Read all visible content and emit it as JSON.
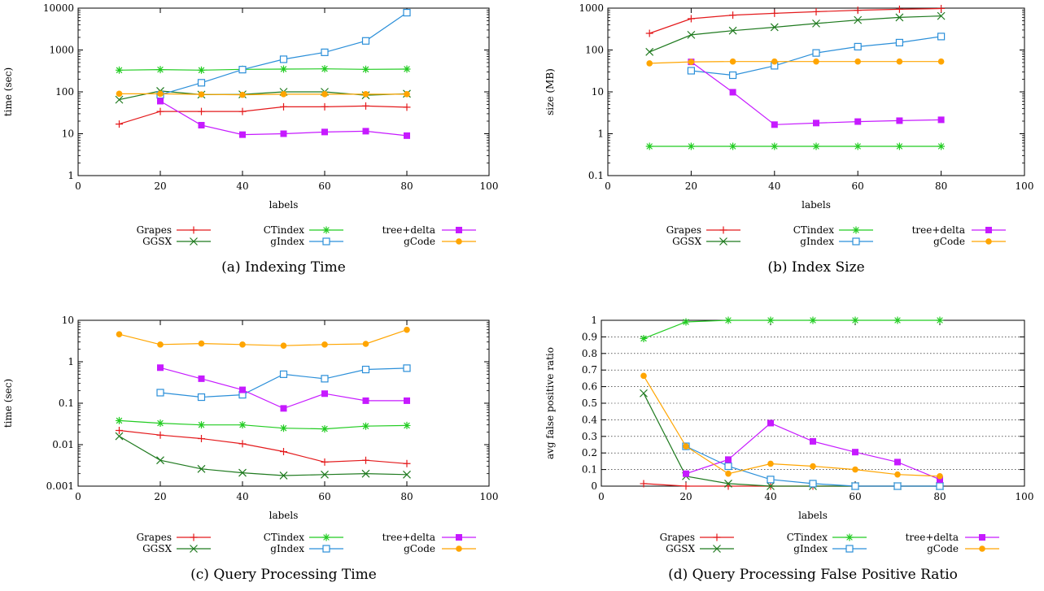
{
  "legend": {
    "series": [
      {
        "label": "Grapes",
        "color": "#e41a1c",
        "marker": "plus"
      },
      {
        "label": "GGSX",
        "color": "#1f7a1f",
        "marker": "cross"
      },
      {
        "label": "CTindex",
        "color": "#22cc22",
        "marker": "star"
      },
      {
        "label": "gIndex",
        "color": "#2b8fd9",
        "marker": "square-open"
      },
      {
        "label": "tree+delta",
        "color": "#c61aff",
        "marker": "square-filled"
      },
      {
        "label": "gCode",
        "color": "#ffa500",
        "marker": "circle-filled"
      }
    ]
  },
  "chart_data": [
    {
      "type": "line",
      "caption": "(a) Indexing Time",
      "xlabel": "labels",
      "ylabel": "time (sec)",
      "xlim": [
        0,
        100
      ],
      "xticks": [
        "0",
        "20",
        "40",
        "60",
        "80",
        "100"
      ],
      "ylim": [
        1,
        10000
      ],
      "yscale": "log",
      "yticks": [
        "1",
        "10",
        "100",
        "1000",
        "10000"
      ],
      "grid": false,
      "legend_position": "bottom",
      "series": [
        {
          "name": "Grapes",
          "x": [
            10,
            20,
            30,
            40,
            50,
            60,
            70,
            80
          ],
          "values": [
            17,
            34,
            34,
            34,
            44,
            44,
            46,
            43
          ]
        },
        {
          "name": "GGSX",
          "x": [
            10,
            20,
            30,
            40,
            50,
            60,
            70,
            80
          ],
          "values": [
            65,
            105,
            86,
            87,
            100,
            100,
            83,
            90
          ]
        },
        {
          "name": "CTindex",
          "x": [
            10,
            20,
            30,
            40,
            50,
            60,
            70,
            80
          ],
          "values": [
            330,
            340,
            330,
            345,
            350,
            355,
            345,
            350
          ]
        },
        {
          "name": "gIndex",
          "x": [
            20,
            30,
            40,
            50,
            60,
            70,
            80
          ],
          "values": [
            85,
            165,
            340,
            600,
            880,
            1650,
            7800
          ]
        },
        {
          "name": "tree+delta",
          "x": [
            20,
            30,
            40,
            50,
            60,
            70,
            80
          ],
          "values": [
            60,
            16,
            9.5,
            10,
            11,
            11.5,
            9
          ]
        },
        {
          "name": "gCode",
          "x": [
            10,
            20,
            30,
            40,
            50,
            60,
            70,
            80
          ],
          "values": [
            90,
            90,
            87,
            85,
            88,
            88,
            88,
            88
          ]
        }
      ]
    },
    {
      "type": "line",
      "caption": "(b) Index Size",
      "xlabel": "labels",
      "ylabel": "size (MB)",
      "xlim": [
        0,
        100
      ],
      "xticks": [
        "0",
        "20",
        "40",
        "60",
        "80",
        "100"
      ],
      "ylim": [
        0.1,
        1000
      ],
      "yscale": "log",
      "yticks": [
        "0.1",
        "1",
        "10",
        "100",
        "1000"
      ],
      "grid": false,
      "legend_position": "bottom",
      "series": [
        {
          "name": "Grapes",
          "x": [
            10,
            20,
            30,
            40,
            50,
            60,
            70,
            80
          ],
          "values": [
            250,
            560,
            680,
            750,
            820,
            890,
            940,
            980
          ]
        },
        {
          "name": "GGSX",
          "x": [
            10,
            20,
            30,
            40,
            50,
            60,
            70,
            80
          ],
          "values": [
            90,
            230,
            290,
            350,
            430,
            520,
            600,
            650
          ]
        },
        {
          "name": "CTindex",
          "x": [
            10,
            20,
            30,
            40,
            50,
            60,
            70,
            80
          ],
          "values": [
            0.5,
            0.5,
            0.5,
            0.5,
            0.5,
            0.5,
            0.5,
            0.5
          ]
        },
        {
          "name": "gIndex",
          "x": [
            20,
            30,
            40,
            50,
            60,
            70,
            80
          ],
          "values": [
            32,
            25,
            42,
            85,
            120,
            150,
            210
          ]
        },
        {
          "name": "tree+delta",
          "x": [
            20,
            30,
            40,
            50,
            60,
            70,
            80
          ],
          "values": [
            52,
            9.8,
            1.65,
            1.8,
            1.95,
            2.05,
            2.15
          ]
        },
        {
          "name": "gCode",
          "x": [
            10,
            20,
            30,
            40,
            50,
            60,
            70,
            80
          ],
          "values": [
            48,
            52,
            53,
            53,
            53,
            53,
            53,
            53
          ]
        }
      ]
    },
    {
      "type": "line",
      "caption": "(c) Query Processing Time",
      "xlabel": "labels",
      "ylabel": "time (sec)",
      "xlim": [
        0,
        100
      ],
      "xticks": [
        "0",
        "20",
        "40",
        "60",
        "80",
        "100"
      ],
      "ylim": [
        0.001,
        10
      ],
      "yscale": "log",
      "yticks": [
        "0.001",
        "0.01",
        "0.1",
        "1",
        "10"
      ],
      "grid": false,
      "legend_position": "bottom",
      "series": [
        {
          "name": "Grapes",
          "x": [
            10,
            20,
            30,
            40,
            50,
            60,
            70,
            80
          ],
          "values": [
            0.022,
            0.017,
            0.014,
            0.0105,
            0.0068,
            0.0038,
            0.0042,
            0.0035
          ]
        },
        {
          "name": "GGSX",
          "x": [
            10,
            20,
            30,
            40,
            50,
            60,
            70,
            80
          ],
          "values": [
            0.016,
            0.0042,
            0.0026,
            0.0021,
            0.0018,
            0.0019,
            0.002,
            0.0019
          ]
        },
        {
          "name": "CTindex",
          "x": [
            10,
            20,
            30,
            40,
            50,
            60,
            70,
            80
          ],
          "values": [
            0.038,
            0.033,
            0.03,
            0.03,
            0.025,
            0.024,
            0.028,
            0.029
          ]
        },
        {
          "name": "gIndex",
          "x": [
            20,
            30,
            40,
            50,
            60,
            70,
            80
          ],
          "values": [
            0.18,
            0.14,
            0.16,
            0.5,
            0.39,
            0.65,
            0.7
          ]
        },
        {
          "name": "tree+delta",
          "x": [
            20,
            30,
            40,
            50,
            60,
            70,
            80
          ],
          "values": [
            0.72,
            0.39,
            0.21,
            0.075,
            0.17,
            0.115,
            0.115
          ]
        },
        {
          "name": "gCode",
          "x": [
            10,
            20,
            30,
            40,
            50,
            60,
            70,
            80
          ],
          "values": [
            4.6,
            2.6,
            2.75,
            2.6,
            2.45,
            2.6,
            2.7,
            5.9
          ]
        }
      ]
    },
    {
      "type": "line",
      "caption": "(d) Query Processing False Positive Ratio",
      "xlabel": "labels",
      "ylabel": "avg false positive ratio",
      "xlim": [
        0,
        100
      ],
      "xticks": [
        "0",
        "20",
        "40",
        "60",
        "80",
        "100"
      ],
      "ylim": [
        0,
        1
      ],
      "yscale": "linear",
      "yticks": [
        "0",
        "0.1",
        "0.2",
        "0.3",
        "0.4",
        "0.5",
        "0.6",
        "0.7",
        "0.8",
        "0.9",
        "1"
      ],
      "grid": true,
      "legend_position": "bottom",
      "series": [
        {
          "name": "Grapes",
          "x": [
            10,
            20,
            30,
            40,
            50,
            60,
            70,
            80
          ],
          "values": [
            0.015,
            0.0,
            0.0,
            0.0,
            0.0,
            0.0,
            0.0,
            0.0
          ]
        },
        {
          "name": "GGSX",
          "x": [
            10,
            20,
            30,
            40,
            50,
            60,
            70,
            80
          ],
          "values": [
            0.56,
            0.06,
            0.015,
            0.0,
            0.0,
            0.0,
            0.0,
            0.0
          ]
        },
        {
          "name": "CTindex",
          "x": [
            10,
            20,
            30,
            40,
            50,
            60,
            70,
            80
          ],
          "values": [
            0.89,
            0.99,
            1.0,
            1.0,
            1.0,
            1.0,
            1.0,
            1.0
          ]
        },
        {
          "name": "gIndex",
          "x": [
            20,
            30,
            40,
            50,
            60,
            70,
            80
          ],
          "values": [
            0.24,
            0.12,
            0.04,
            0.015,
            0.0,
            0.0,
            0.0
          ]
        },
        {
          "name": "tree+delta",
          "x": [
            20,
            30,
            40,
            50,
            60,
            70,
            80
          ],
          "values": [
            0.075,
            0.16,
            0.38,
            0.27,
            0.205,
            0.145,
            0.04
          ]
        },
        {
          "name": "gCode",
          "x": [
            10,
            20,
            30,
            40,
            50,
            60,
            70,
            80
          ],
          "values": [
            0.665,
            0.24,
            0.075,
            0.135,
            0.12,
            0.1,
            0.07,
            0.06
          ]
        }
      ]
    }
  ]
}
